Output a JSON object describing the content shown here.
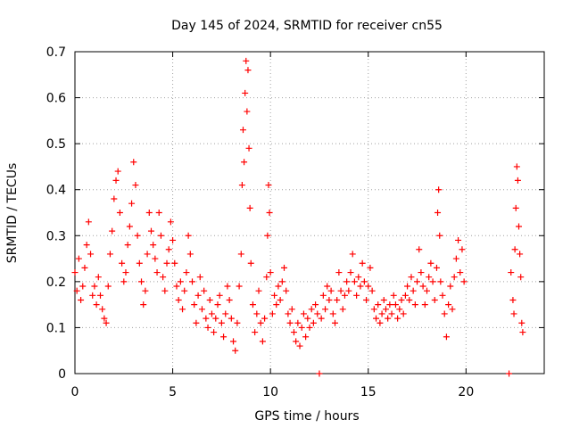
{
  "chart_data": {
    "type": "scatter",
    "title": "Day 145 of 2024, SRMTID for receiver cn55",
    "xlabel": "GPS time / hours",
    "ylabel": "SRMTID / TECUs",
    "xlim": [
      0,
      24
    ],
    "ylim": [
      0,
      0.7
    ],
    "xticks": [
      0,
      5,
      10,
      15,
      20
    ],
    "yticks": [
      0,
      0.1,
      0.2,
      0.3,
      0.4,
      0.5,
      0.6,
      0.7
    ],
    "grid": true,
    "marker": "+",
    "color": "#ff0000",
    "series": [
      {
        "name": "SRMTID cn55",
        "points": [
          [
            0.0,
            0.22
          ],
          [
            0.1,
            0.18
          ],
          [
            0.2,
            0.25
          ],
          [
            0.3,
            0.16
          ],
          [
            0.4,
            0.19
          ],
          [
            0.5,
            0.23
          ],
          [
            0.6,
            0.28
          ],
          [
            0.7,
            0.33
          ],
          [
            0.8,
            0.26
          ],
          [
            0.9,
            0.17
          ],
          [
            1.0,
            0.19
          ],
          [
            1.1,
            0.15
          ],
          [
            1.2,
            0.21
          ],
          [
            1.3,
            0.17
          ],
          [
            1.4,
            0.14
          ],
          [
            1.5,
            0.12
          ],
          [
            1.6,
            0.11
          ],
          [
            1.7,
            0.19
          ],
          [
            1.8,
            0.26
          ],
          [
            1.9,
            0.31
          ],
          [
            2.0,
            0.38
          ],
          [
            2.1,
            0.42
          ],
          [
            2.2,
            0.44
          ],
          [
            2.3,
            0.35
          ],
          [
            2.4,
            0.24
          ],
          [
            2.5,
            0.2
          ],
          [
            2.6,
            0.22
          ],
          [
            2.7,
            0.28
          ],
          [
            2.8,
            0.32
          ],
          [
            2.9,
            0.37
          ],
          [
            3.0,
            0.46
          ],
          [
            3.1,
            0.41
          ],
          [
            3.2,
            0.3
          ],
          [
            3.3,
            0.24
          ],
          [
            3.4,
            0.2
          ],
          [
            3.5,
            0.15
          ],
          [
            3.6,
            0.18
          ],
          [
            3.7,
            0.26
          ],
          [
            3.8,
            0.35
          ],
          [
            3.9,
            0.31
          ],
          [
            4.0,
            0.28
          ],
          [
            4.1,
            0.25
          ],
          [
            4.2,
            0.22
          ],
          [
            4.3,
            0.35
          ],
          [
            4.4,
            0.3
          ],
          [
            4.5,
            0.21
          ],
          [
            4.6,
            0.18
          ],
          [
            4.7,
            0.24
          ],
          [
            4.8,
            0.27
          ],
          [
            4.9,
            0.33
          ],
          [
            5.0,
            0.29
          ],
          [
            5.1,
            0.24
          ],
          [
            5.2,
            0.19
          ],
          [
            5.3,
            0.16
          ],
          [
            5.4,
            0.2
          ],
          [
            5.5,
            0.14
          ],
          [
            5.6,
            0.18
          ],
          [
            5.7,
            0.22
          ],
          [
            5.8,
            0.3
          ],
          [
            5.9,
            0.26
          ],
          [
            6.0,
            0.2
          ],
          [
            6.1,
            0.15
          ],
          [
            6.2,
            0.11
          ],
          [
            6.3,
            0.17
          ],
          [
            6.4,
            0.21
          ],
          [
            6.5,
            0.14
          ],
          [
            6.6,
            0.18
          ],
          [
            6.7,
            0.12
          ],
          [
            6.8,
            0.1
          ],
          [
            6.9,
            0.16
          ],
          [
            7.0,
            0.13
          ],
          [
            7.1,
            0.09
          ],
          [
            7.2,
            0.12
          ],
          [
            7.3,
            0.15
          ],
          [
            7.4,
            0.17
          ],
          [
            7.5,
            0.11
          ],
          [
            7.6,
            0.08
          ],
          [
            7.7,
            0.13
          ],
          [
            7.8,
            0.19
          ],
          [
            7.9,
            0.16
          ],
          [
            8.0,
            0.12
          ],
          [
            8.1,
            0.07
          ],
          [
            8.2,
            0.05
          ],
          [
            8.3,
            0.11
          ],
          [
            8.4,
            0.19
          ],
          [
            8.5,
            0.26
          ],
          [
            8.55,
            0.41
          ],
          [
            8.6,
            0.53
          ],
          [
            8.65,
            0.46
          ],
          [
            8.7,
            0.61
          ],
          [
            8.75,
            0.68
          ],
          [
            8.8,
            0.57
          ],
          [
            8.85,
            0.66
          ],
          [
            8.9,
            0.49
          ],
          [
            8.95,
            0.36
          ],
          [
            9.0,
            0.24
          ],
          [
            9.1,
            0.15
          ],
          [
            9.2,
            0.09
          ],
          [
            9.3,
            0.13
          ],
          [
            9.4,
            0.18
          ],
          [
            9.5,
            0.11
          ],
          [
            9.6,
            0.07
          ],
          [
            9.7,
            0.12
          ],
          [
            9.8,
            0.21
          ],
          [
            9.85,
            0.3
          ],
          [
            9.9,
            0.41
          ],
          [
            9.95,
            0.35
          ],
          [
            10.0,
            0.22
          ],
          [
            10.1,
            0.13
          ],
          [
            10.2,
            0.17
          ],
          [
            10.3,
            0.15
          ],
          [
            10.4,
            0.19
          ],
          [
            10.5,
            0.16
          ],
          [
            10.6,
            0.2
          ],
          [
            10.7,
            0.23
          ],
          [
            10.8,
            0.18
          ],
          [
            10.9,
            0.13
          ],
          [
            11.0,
            0.11
          ],
          [
            11.1,
            0.14
          ],
          [
            11.2,
            0.09
          ],
          [
            11.3,
            0.07
          ],
          [
            11.4,
            0.11
          ],
          [
            11.5,
            0.06
          ],
          [
            11.6,
            0.1
          ],
          [
            11.7,
            0.13
          ],
          [
            11.8,
            0.08
          ],
          [
            11.9,
            0.12
          ],
          [
            12.0,
            0.1
          ],
          [
            12.1,
            0.14
          ],
          [
            12.2,
            0.11
          ],
          [
            12.3,
            0.15
          ],
          [
            12.4,
            0.13
          ],
          [
            12.5,
            0.0
          ],
          [
            12.6,
            0.12
          ],
          [
            12.7,
            0.17
          ],
          [
            12.8,
            0.14
          ],
          [
            12.9,
            0.19
          ],
          [
            13.0,
            0.16
          ],
          [
            13.1,
            0.18
          ],
          [
            13.2,
            0.13
          ],
          [
            13.3,
            0.11
          ],
          [
            13.4,
            0.16
          ],
          [
            13.5,
            0.22
          ],
          [
            13.6,
            0.18
          ],
          [
            13.7,
            0.14
          ],
          [
            13.8,
            0.17
          ],
          [
            13.9,
            0.2
          ],
          [
            14.0,
            0.18
          ],
          [
            14.1,
            0.22
          ],
          [
            14.2,
            0.26
          ],
          [
            14.3,
            0.2
          ],
          [
            14.4,
            0.17
          ],
          [
            14.5,
            0.21
          ],
          [
            14.6,
            0.19
          ],
          [
            14.7,
            0.24
          ],
          [
            14.8,
            0.2
          ],
          [
            14.9,
            0.16
          ],
          [
            15.0,
            0.19
          ],
          [
            15.1,
            0.23
          ],
          [
            15.2,
            0.18
          ],
          [
            15.3,
            0.14
          ],
          [
            15.4,
            0.12
          ],
          [
            15.5,
            0.15
          ],
          [
            15.6,
            0.11
          ],
          [
            15.7,
            0.13
          ],
          [
            15.8,
            0.16
          ],
          [
            15.9,
            0.14
          ],
          [
            16.0,
            0.12
          ],
          [
            16.1,
            0.15
          ],
          [
            16.2,
            0.13
          ],
          [
            16.3,
            0.17
          ],
          [
            16.4,
            0.15
          ],
          [
            16.5,
            0.12
          ],
          [
            16.6,
            0.14
          ],
          [
            16.7,
            0.16
          ],
          [
            16.8,
            0.13
          ],
          [
            16.9,
            0.17
          ],
          [
            17.0,
            0.19
          ],
          [
            17.1,
            0.16
          ],
          [
            17.2,
            0.21
          ],
          [
            17.3,
            0.18
          ],
          [
            17.4,
            0.15
          ],
          [
            17.5,
            0.2
          ],
          [
            17.6,
            0.27
          ],
          [
            17.7,
            0.22
          ],
          [
            17.8,
            0.19
          ],
          [
            17.9,
            0.15
          ],
          [
            18.0,
            0.18
          ],
          [
            18.1,
            0.21
          ],
          [
            18.2,
            0.24
          ],
          [
            18.3,
            0.2
          ],
          [
            18.4,
            0.16
          ],
          [
            18.5,
            0.23
          ],
          [
            18.55,
            0.35
          ],
          [
            18.6,
            0.4
          ],
          [
            18.65,
            0.3
          ],
          [
            18.7,
            0.2
          ],
          [
            18.8,
            0.17
          ],
          [
            18.9,
            0.13
          ],
          [
            19.0,
            0.08
          ],
          [
            19.1,
            0.15
          ],
          [
            19.2,
            0.19
          ],
          [
            19.3,
            0.14
          ],
          [
            19.4,
            0.21
          ],
          [
            19.5,
            0.25
          ],
          [
            19.6,
            0.29
          ],
          [
            19.7,
            0.22
          ],
          [
            19.8,
            0.27
          ],
          [
            19.9,
            0.2
          ],
          [
            22.2,
            0.0
          ],
          [
            22.3,
            0.22
          ],
          [
            22.4,
            0.16
          ],
          [
            22.45,
            0.13
          ],
          [
            22.5,
            0.27
          ],
          [
            22.55,
            0.36
          ],
          [
            22.6,
            0.45
          ],
          [
            22.65,
            0.42
          ],
          [
            22.7,
            0.32
          ],
          [
            22.75,
            0.26
          ],
          [
            22.8,
            0.21
          ],
          [
            22.85,
            0.11
          ],
          [
            22.9,
            0.09
          ]
        ]
      }
    ]
  }
}
